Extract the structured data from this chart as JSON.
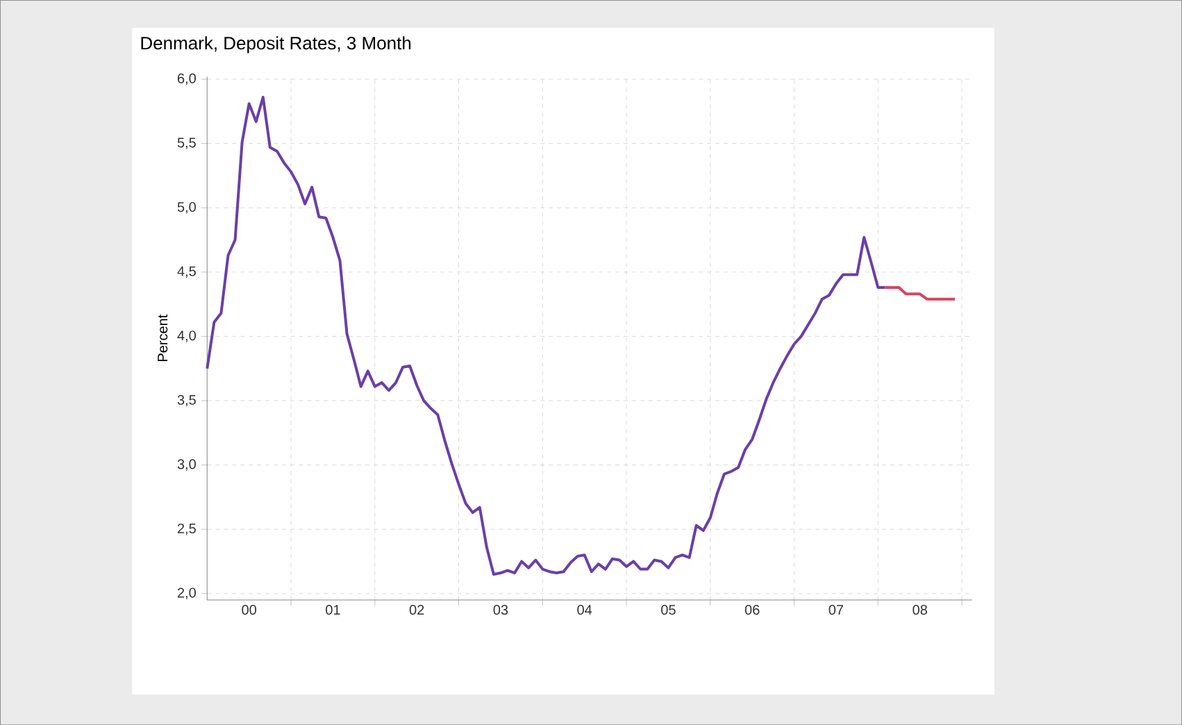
{
  "chart_data": {
    "type": "line",
    "title": "Denmark, Deposit Rates, 3 Month",
    "ylabel": "Percent",
    "xlim": [
      "2000-01",
      "2009-02-15"
    ],
    "ylim": [
      1.95,
      6.02
    ],
    "xticks": [
      {
        "value": "2000-07",
        "label": "00"
      },
      {
        "value": "2001-01",
        "label": null
      },
      {
        "value": "2001-07",
        "label": "01"
      },
      {
        "value": "2002-01",
        "label": null
      },
      {
        "value": "2002-07",
        "label": "02"
      },
      {
        "value": "2003-01",
        "label": null
      },
      {
        "value": "2003-07",
        "label": "03"
      },
      {
        "value": "2004-01",
        "label": null
      },
      {
        "value": "2004-07",
        "label": "04"
      },
      {
        "value": "2005-01",
        "label": null
      },
      {
        "value": "2005-07",
        "label": "05"
      },
      {
        "value": "2006-01",
        "label": null
      },
      {
        "value": "2006-07",
        "label": "06"
      },
      {
        "value": "2007-01",
        "label": null
      },
      {
        "value": "2007-07",
        "label": "07"
      },
      {
        "value": "2008-01",
        "label": null
      },
      {
        "value": "2008-07",
        "label": "08"
      },
      {
        "value": "2009-01",
        "label": null
      }
    ],
    "yticks": [
      {
        "value": 2,
        "label": "2,0"
      },
      {
        "value": 2.5,
        "label": "2,5"
      },
      {
        "value": 3,
        "label": "3,0"
      },
      {
        "value": 3.5,
        "label": "3,5"
      },
      {
        "value": 4,
        "label": "4,0"
      },
      {
        "value": 4.5,
        "label": "4,5"
      },
      {
        "value": 5,
        "label": "5,0"
      },
      {
        "value": 5.5,
        "label": "5,5"
      },
      {
        "value": 6,
        "label": "6,0"
      }
    ],
    "grid": true,
    "series": [
      {
        "color": "#6a3fa8",
        "x": [
          "2000-01",
          "2000-02",
          "2000-03",
          "2000-04",
          "2000-05",
          "2000-06",
          "2000-07",
          "2000-08",
          "2000-09",
          "2000-10",
          "2000-11",
          "2000-12",
          "2001-01",
          "2001-02",
          "2001-03",
          "2001-04",
          "2001-05",
          "2001-06",
          "2001-07",
          "2001-08",
          "2001-09",
          "2001-10",
          "2001-11",
          "2001-12",
          "2002-01",
          "2002-02",
          "2002-03",
          "2002-04",
          "2002-05",
          "2002-06",
          "2002-07",
          "2002-08",
          "2002-09",
          "2002-10",
          "2002-11",
          "2002-12",
          "2003-01",
          "2003-02",
          "2003-03",
          "2003-04",
          "2003-05",
          "2003-06",
          "2003-07",
          "2003-08",
          "2003-09",
          "2003-10",
          "2003-11",
          "2003-12",
          "2004-01",
          "2004-02",
          "2004-03",
          "2004-04",
          "2004-05",
          "2004-06",
          "2004-07",
          "2004-08",
          "2004-09",
          "2004-10",
          "2004-11",
          "2004-12",
          "2005-01",
          "2005-02",
          "2005-03",
          "2005-04",
          "2005-05",
          "2005-06",
          "2005-07",
          "2005-08",
          "2005-09",
          "2005-10",
          "2005-11",
          "2005-12",
          "2006-01",
          "2006-02",
          "2006-03",
          "2006-04",
          "2006-05",
          "2006-06",
          "2006-07",
          "2006-08",
          "2006-09",
          "2006-10",
          "2006-11",
          "2006-12",
          "2007-01",
          "2007-02",
          "2007-03",
          "2007-04",
          "2007-05",
          "2007-06",
          "2007-07",
          "2007-08",
          "2007-09",
          "2007-10",
          "2007-11",
          "2007-12",
          "2008-01",
          "2008-02"
        ],
        "values": [
          3.75,
          4.11,
          4.18,
          4.63,
          4.75,
          5.51,
          5.81,
          5.67,
          5.86,
          5.47,
          5.44,
          5.35,
          5.28,
          5.18,
          5.03,
          5.16,
          4.93,
          4.92,
          4.77,
          4.59,
          4.02,
          3.82,
          3.61,
          3.73,
          3.61,
          3.64,
          3.58,
          3.64,
          3.76,
          3.77,
          3.62,
          3.5,
          3.44,
          3.39,
          3.19,
          3.01,
          2.85,
          2.7,
          2.63,
          2.67,
          2.36,
          2.15,
          2.16,
          2.18,
          2.16,
          2.25,
          2.2,
          2.26,
          2.19,
          2.17,
          2.16,
          2.17,
          2.24,
          2.29,
          2.3,
          2.17,
          2.23,
          2.19,
          2.27,
          2.26,
          2.21,
          2.25,
          2.19,
          2.19,
          2.26,
          2.25,
          2.2,
          2.28,
          2.3,
          2.28,
          2.53,
          2.49,
          2.59,
          2.78,
          2.93,
          2.95,
          2.98,
          3.12,
          3.2,
          3.35,
          3.51,
          3.64,
          3.75,
          3.85,
          3.94,
          4.0,
          4.09,
          4.18,
          4.29,
          4.32,
          4.41,
          4.48,
          4.48,
          4.48,
          4.77,
          4.58,
          4.38,
          4.38
        ]
      },
      {
        "color": "#d64561",
        "x": [
          "2008-02",
          "2008-03",
          "2008-04",
          "2008-05",
          "2008-06",
          "2008-07",
          "2008-08",
          "2008-09",
          "2008-10",
          "2008-11",
          "2008-12"
        ],
        "values": [
          4.38,
          4.38,
          4.38,
          4.33,
          4.33,
          4.33,
          4.29,
          4.29,
          4.29,
          4.29,
          4.29
        ]
      }
    ]
  }
}
